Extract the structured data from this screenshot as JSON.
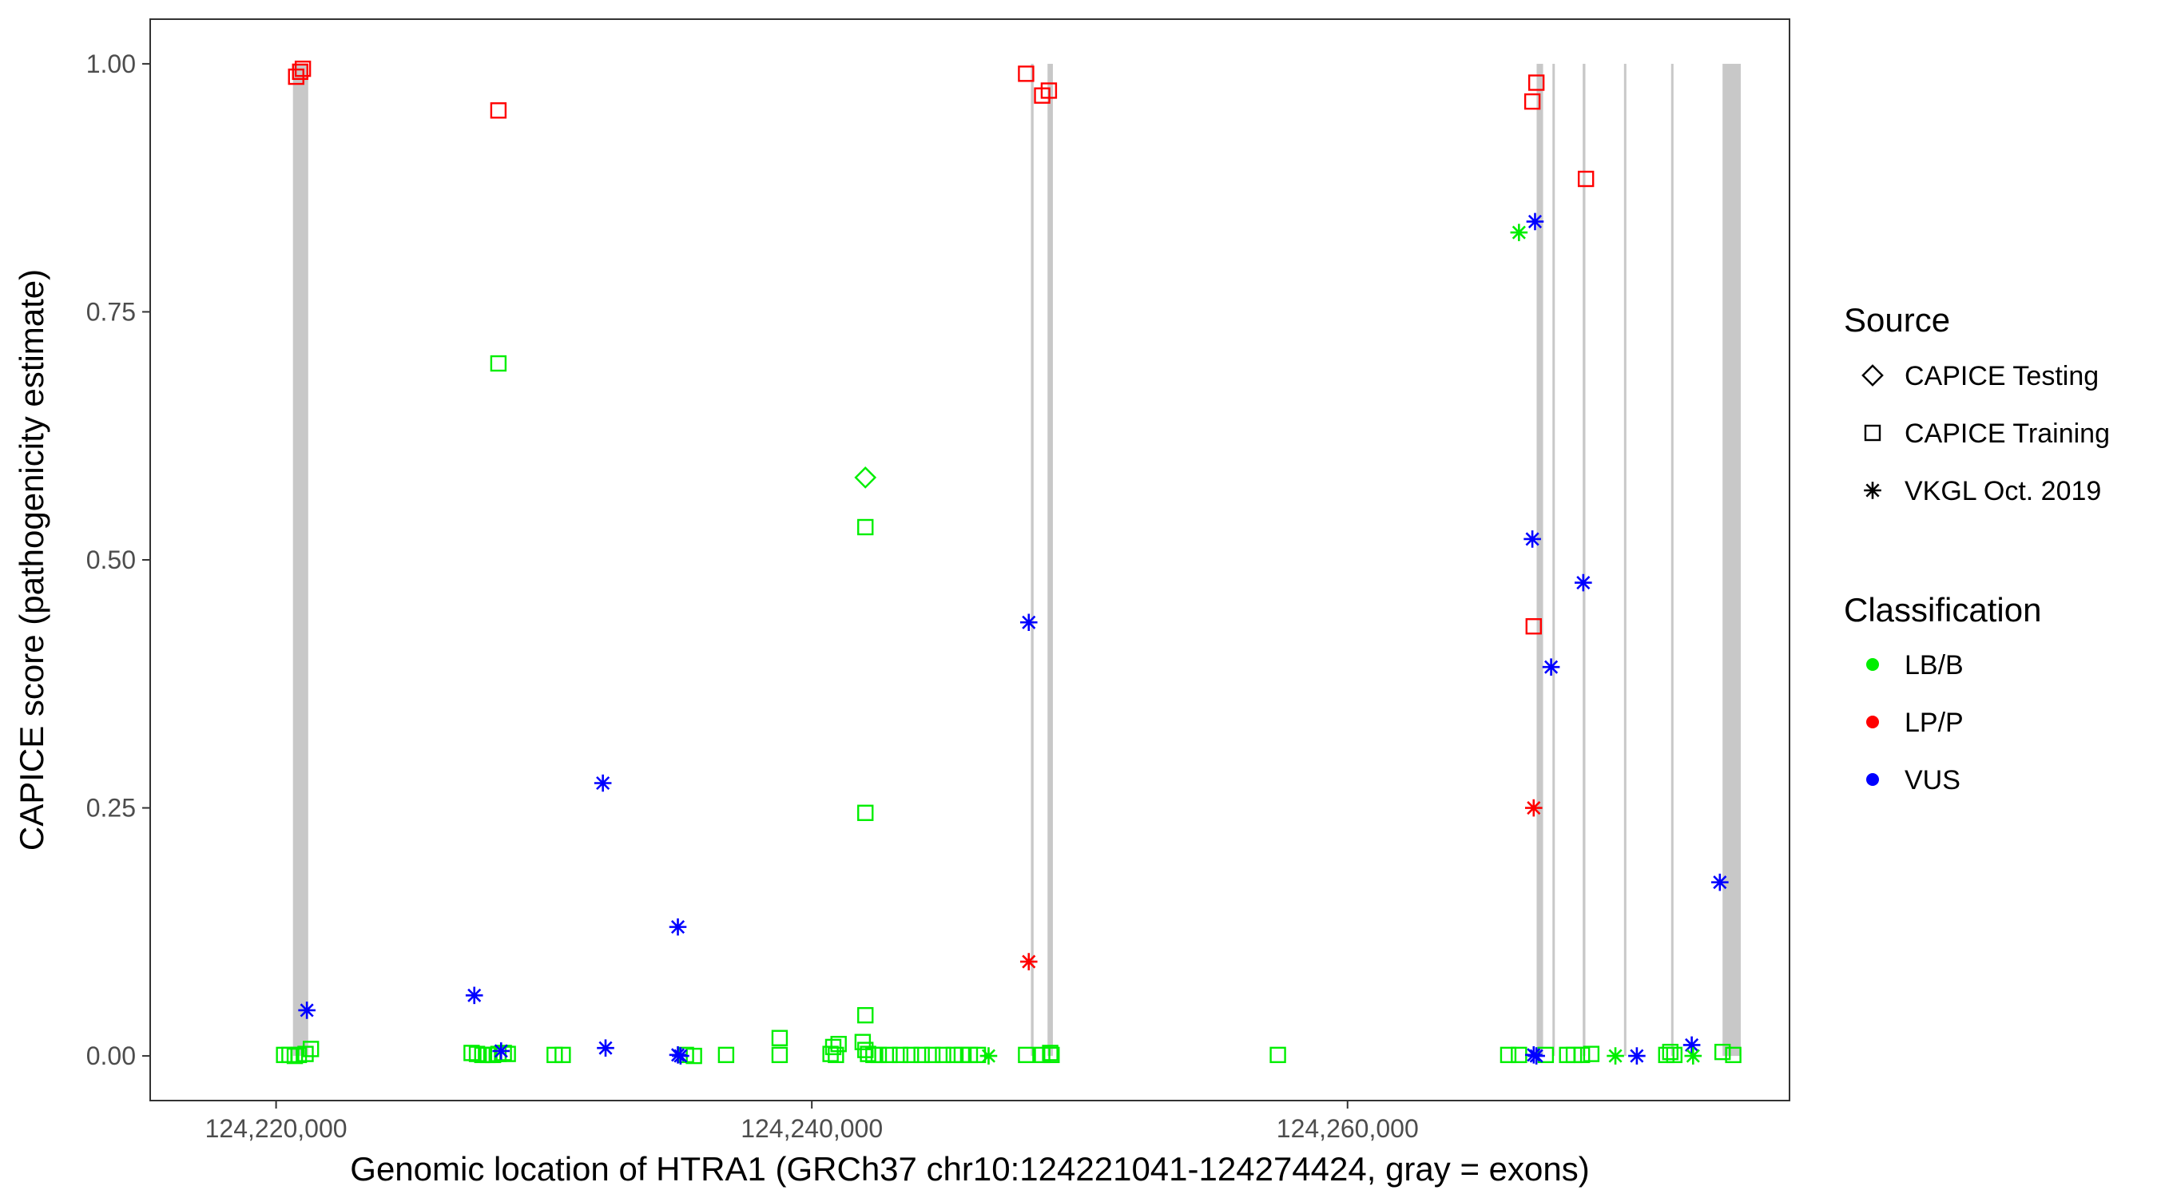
{
  "chart_data": {
    "type": "scatter",
    "title": "",
    "xlabel": "Genomic location of HTRA1 (GRCh37 chr10:124221041-124274424, gray = exons)",
    "ylabel": "CAPICE score (pathogenicity estimate)",
    "xlim": [
      124215300,
      124276500
    ],
    "ylim": [
      -0.045,
      1.045
    ],
    "x_ticks": [
      124220000,
      124240000,
      124260000
    ],
    "x_tick_labels": [
      "124,220,000",
      "124,240,000",
      "124,260,000"
    ],
    "y_ticks": [
      0,
      0.25,
      0.5,
      0.75,
      1
    ],
    "y_tick_labels": [
      "0.00",
      "0.25",
      "0.50",
      "0.75",
      "1.00"
    ],
    "grid": false,
    "legend_position": "right",
    "exons": [
      [
        124220630,
        124221200
      ],
      [
        124248180,
        124248280
      ],
      [
        124248800,
        124249000
      ],
      [
        124267060,
        124267300
      ],
      [
        124267650,
        124267720
      ],
      [
        124268780,
        124268880
      ],
      [
        124270320,
        124270390
      ],
      [
        124272080,
        124272150
      ],
      [
        124274000,
        124274680
      ]
    ],
    "legend": {
      "source_title": "Source",
      "source_items": [
        {
          "key": "testing",
          "label": "CAPICE Testing",
          "shape": "diamond"
        },
        {
          "key": "training",
          "label": "CAPICE Training",
          "shape": "square"
        },
        {
          "key": "vkgl",
          "label": "VKGL Oct. 2019",
          "shape": "asterisk"
        }
      ],
      "class_title": "Classification",
      "class_items": [
        {
          "key": "LB/B",
          "label": "LB/B",
          "color": "#00ee00"
        },
        {
          "key": "LP/P",
          "label": "LP/P",
          "color": "#ff0000"
        },
        {
          "key": "VUS",
          "label": "VUS",
          "color": "#0000ff"
        }
      ]
    },
    "series": [
      {
        "source": "training",
        "classification": "LP/P",
        "points": [
          [
            124220750,
            0.987
          ],
          [
            124220900,
            0.992
          ],
          [
            124221000,
            0.995
          ],
          [
            124228300,
            0.953
          ],
          [
            124248000,
            0.99
          ],
          [
            124248600,
            0.968
          ],
          [
            124248850,
            0.973
          ],
          [
            124266900,
            0.962
          ],
          [
            124267050,
            0.981
          ],
          [
            124266950,
            0.433
          ],
          [
            124268900,
            0.884
          ]
        ]
      },
      {
        "source": "training",
        "classification": "LB/B",
        "points": [
          [
            124220300,
            0.001
          ],
          [
            124220500,
            0.001
          ],
          [
            124220700,
            0.0
          ],
          [
            124220850,
            0.001
          ],
          [
            124221100,
            0.002
          ],
          [
            124221300,
            0.007
          ],
          [
            124228300,
            0.698
          ],
          [
            124227300,
            0.003
          ],
          [
            124227500,
            0.002
          ],
          [
            124227700,
            0.001
          ],
          [
            124227900,
            0.001
          ],
          [
            124228100,
            0.001
          ],
          [
            124228300,
            0.002
          ],
          [
            124228500,
            0.003
          ],
          [
            124228650,
            0.002
          ],
          [
            124230400,
            0.001
          ],
          [
            124230700,
            0.001
          ],
          [
            124235300,
            0.001
          ],
          [
            124235600,
            0.0
          ],
          [
            124236800,
            0.001
          ],
          [
            124238800,
            0.018
          ],
          [
            124238800,
            0.001
          ],
          [
            124240800,
            0.009
          ],
          [
            124241000,
            0.012
          ],
          [
            124240900,
            0.001
          ],
          [
            124240700,
            0.002
          ],
          [
            124242000,
            0.533
          ],
          [
            124242000,
            0.245
          ],
          [
            124242000,
            0.041
          ],
          [
            124241900,
            0.014
          ],
          [
            124242000,
            0.006
          ],
          [
            124242100,
            0.002
          ],
          [
            124242300,
            0.001
          ],
          [
            124242500,
            0.001
          ],
          [
            124242900,
            0.001
          ],
          [
            124243300,
            0.001
          ],
          [
            124243700,
            0.001
          ],
          [
            124244100,
            0.001
          ],
          [
            124244500,
            0.001
          ],
          [
            124244900,
            0.001
          ],
          [
            124245300,
            0.001
          ],
          [
            124245600,
            0.001
          ],
          [
            124245900,
            0.001
          ],
          [
            124246200,
            0.001
          ],
          [
            124248000,
            0.001
          ],
          [
            124248600,
            0.001
          ],
          [
            124248900,
            0.003
          ],
          [
            124248950,
            0.001
          ],
          [
            124257400,
            0.001
          ],
          [
            124266000,
            0.001
          ],
          [
            124266400,
            0.001
          ],
          [
            124267400,
            0.001
          ],
          [
            124268200,
            0.001
          ],
          [
            124268450,
            0.001
          ],
          [
            124268750,
            0.001
          ],
          [
            124269100,
            0.002
          ],
          [
            124272050,
            0.004
          ],
          [
            124272200,
            0.001
          ],
          [
            124271900,
            0.001
          ],
          [
            124274000,
            0.004
          ],
          [
            124274400,
            0.001
          ]
        ]
      },
      {
        "source": "testing",
        "classification": "LB/B",
        "points": [
          [
            124242000,
            0.583
          ]
        ]
      },
      {
        "source": "vkgl",
        "classification": "VUS",
        "points": [
          [
            124221150,
            0.046
          ],
          [
            124227400,
            0.061
          ],
          [
            124228400,
            0.005
          ],
          [
            124232200,
            0.275
          ],
          [
            124232300,
            0.008
          ],
          [
            124235000,
            0.13
          ],
          [
            124235000,
            0.001
          ],
          [
            124235100,
            0.0
          ],
          [
            124248100,
            0.437
          ],
          [
            124267000,
            0.841
          ],
          [
            124266900,
            0.521
          ],
          [
            124266950,
            0.001
          ],
          [
            124267050,
            0.0
          ],
          [
            124267600,
            0.392
          ],
          [
            124268800,
            0.477
          ],
          [
            124270800,
            0.0
          ],
          [
            124272850,
            0.011
          ],
          [
            124273900,
            0.175
          ]
        ]
      },
      {
        "source": "vkgl",
        "classification": "LB/B",
        "points": [
          [
            124266400,
            0.83
          ],
          [
            124246600,
            0.0
          ],
          [
            124270000,
            0.0
          ],
          [
            124272900,
            0.0
          ]
        ]
      },
      {
        "source": "vkgl",
        "classification": "LP/P",
        "points": [
          [
            124248100,
            0.095
          ],
          [
            124266950,
            0.25
          ]
        ]
      }
    ]
  }
}
